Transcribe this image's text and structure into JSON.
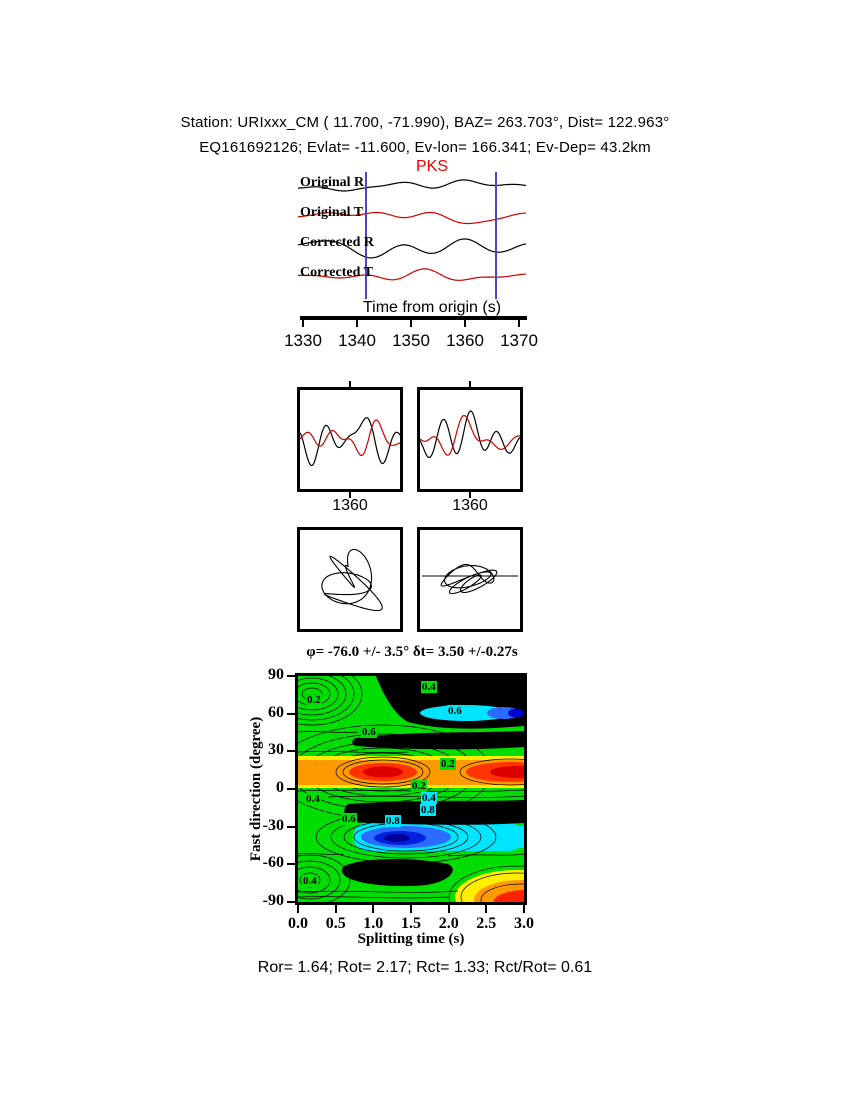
{
  "header": {
    "line1": "Station: URIxxx_CM (  11.700,  -71.990), BAZ=  263.703°, Dist=  122.963°",
    "line2": "EQ161692126; Evlat= -11.600, Ev-lon= 166.341; Ev-Dep= 43.2km"
  },
  "seismogram_panel": {
    "phase_label": "PKS",
    "trace_labels": [
      "Original R",
      "Original T",
      "Corrected R",
      "Corrected T"
    ],
    "axis_label": "Time from origin (s)",
    "tick_labels": [
      "1330",
      "1340",
      "1350",
      "1360",
      "1370"
    ]
  },
  "window_panels": {
    "left_tick_label": "1360",
    "right_tick_label": "1360"
  },
  "contour_panel": {
    "title": "φ= -76.0 +/- 3.5° δt= 3.50 +/-0.27s",
    "xlabel": "Splitting time (s)",
    "ylabel": "Fast direction (degree)",
    "xtick_labels": [
      "0.0",
      "0.5",
      "1.0",
      "1.5",
      "2.0",
      "2.5",
      "3.0"
    ],
    "ytick_labels": [
      "90",
      "60",
      "30",
      "0",
      "-30",
      "-60",
      "-90"
    ],
    "contour_chip_texts": [
      "0.4",
      "0.2",
      "0.6",
      "0.6",
      "0.2",
      "0.2",
      "0.4",
      "0.8",
      "0.4",
      "0.6",
      "0.8",
      "0.4"
    ]
  },
  "footer": {
    "stats_line": "Ror= 1.64; Rot= 2.17; Rct= 1.33; Rct/Rot= 0.61"
  },
  "colors": {
    "trace_red": "#cc0000",
    "window_marker_blue": "#4747c7",
    "phase_red": "#ee0000",
    "map_green": "#00dd00",
    "map_cyan": "#00e5ff",
    "map_blue": "#2b6bff",
    "map_orange": "#ff9900",
    "map_red": "#ff2200",
    "map_yellow": "#ffee00"
  },
  "chart_data": [
    {
      "type": "line",
      "panel": "seismogram-traces",
      "xlabel": "Time from origin (s)",
      "xlim": [
        1328,
        1372
      ],
      "xticks": [
        1330,
        1340,
        1350,
        1360,
        1370
      ],
      "series": [
        {
          "name": "Original R",
          "color": "#000000"
        },
        {
          "name": "Original T",
          "color": "#cc0000"
        },
        {
          "name": "Corrected R",
          "color": "#000000"
        },
        {
          "name": "Corrected T",
          "color": "#cc0000"
        }
      ],
      "phase_marker_label": "PKS",
      "analysis_window_s": [
        1342,
        1366
      ]
    },
    {
      "type": "line",
      "panel": "window-waveform-comparison",
      "subpanels": [
        "original R and T",
        "corrected R and T"
      ],
      "xticks": [
        1360
      ]
    },
    {
      "type": "scatter",
      "panel": "particle-motion",
      "subpanels": [
        "original",
        "corrected"
      ]
    },
    {
      "type": "heatmap",
      "panel": "misfit-contour",
      "title": "φ= -76.0 +/- 3.5° δt= 3.50 +/-0.27s",
      "xlabel": "Splitting time (s)",
      "ylabel": "Fast direction (degree)",
      "xlim": [
        0.0,
        3.0
      ],
      "ylim": [
        -90,
        90
      ],
      "xticks": [
        0.0,
        0.5,
        1.0,
        1.5,
        2.0,
        2.5,
        3.0
      ],
      "yticks": [
        90,
        60,
        30,
        0,
        -30,
        -60,
        -90
      ],
      "contour_levels": [
        0.2,
        0.4,
        0.6,
        0.8
      ],
      "best_fit": {
        "fast_direction_deg": -76.0,
        "fast_direction_err_deg": 3.5,
        "splitting_time_s": 3.5,
        "splitting_time_err_s": 0.27
      },
      "grid": false,
      "legend": "none"
    }
  ],
  "measurements": {
    "Ror": 1.64,
    "Rot": 2.17,
    "Rct": 1.33,
    "Rct_over_Rot": 0.61
  }
}
